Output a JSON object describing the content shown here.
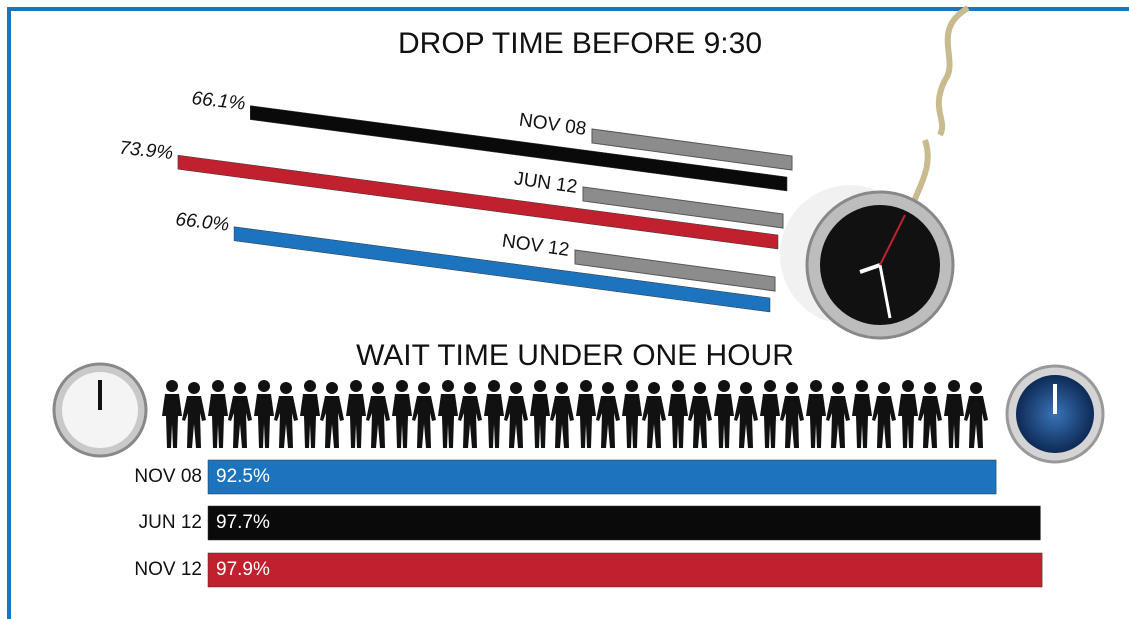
{
  "chart_data": [
    {
      "type": "slanted-bar",
      "title": "DROP TIME BEFORE 9:30",
      "categories": [
        "NOV 08",
        "JUN 12",
        "NOV 12"
      ],
      "values": [
        66.1,
        73.9,
        66.0
      ],
      "value_labels": [
        "66.1%",
        "73.9%",
        "66.0%"
      ],
      "colors": [
        "#0a0a0a",
        "#c1202f",
        "#1b74bd"
      ]
    },
    {
      "type": "bar",
      "title": "WAIT TIME UNDER ONE HOUR",
      "categories": [
        "NOV 08",
        "JUN 12",
        "NOV 12"
      ],
      "values": [
        92.5,
        97.7,
        97.9
      ],
      "value_labels": [
        "92.5%",
        "97.7%",
        "97.9%"
      ],
      "colors": [
        "#1b74bd",
        "#0a0a0a",
        "#c1202f"
      ]
    }
  ]
}
